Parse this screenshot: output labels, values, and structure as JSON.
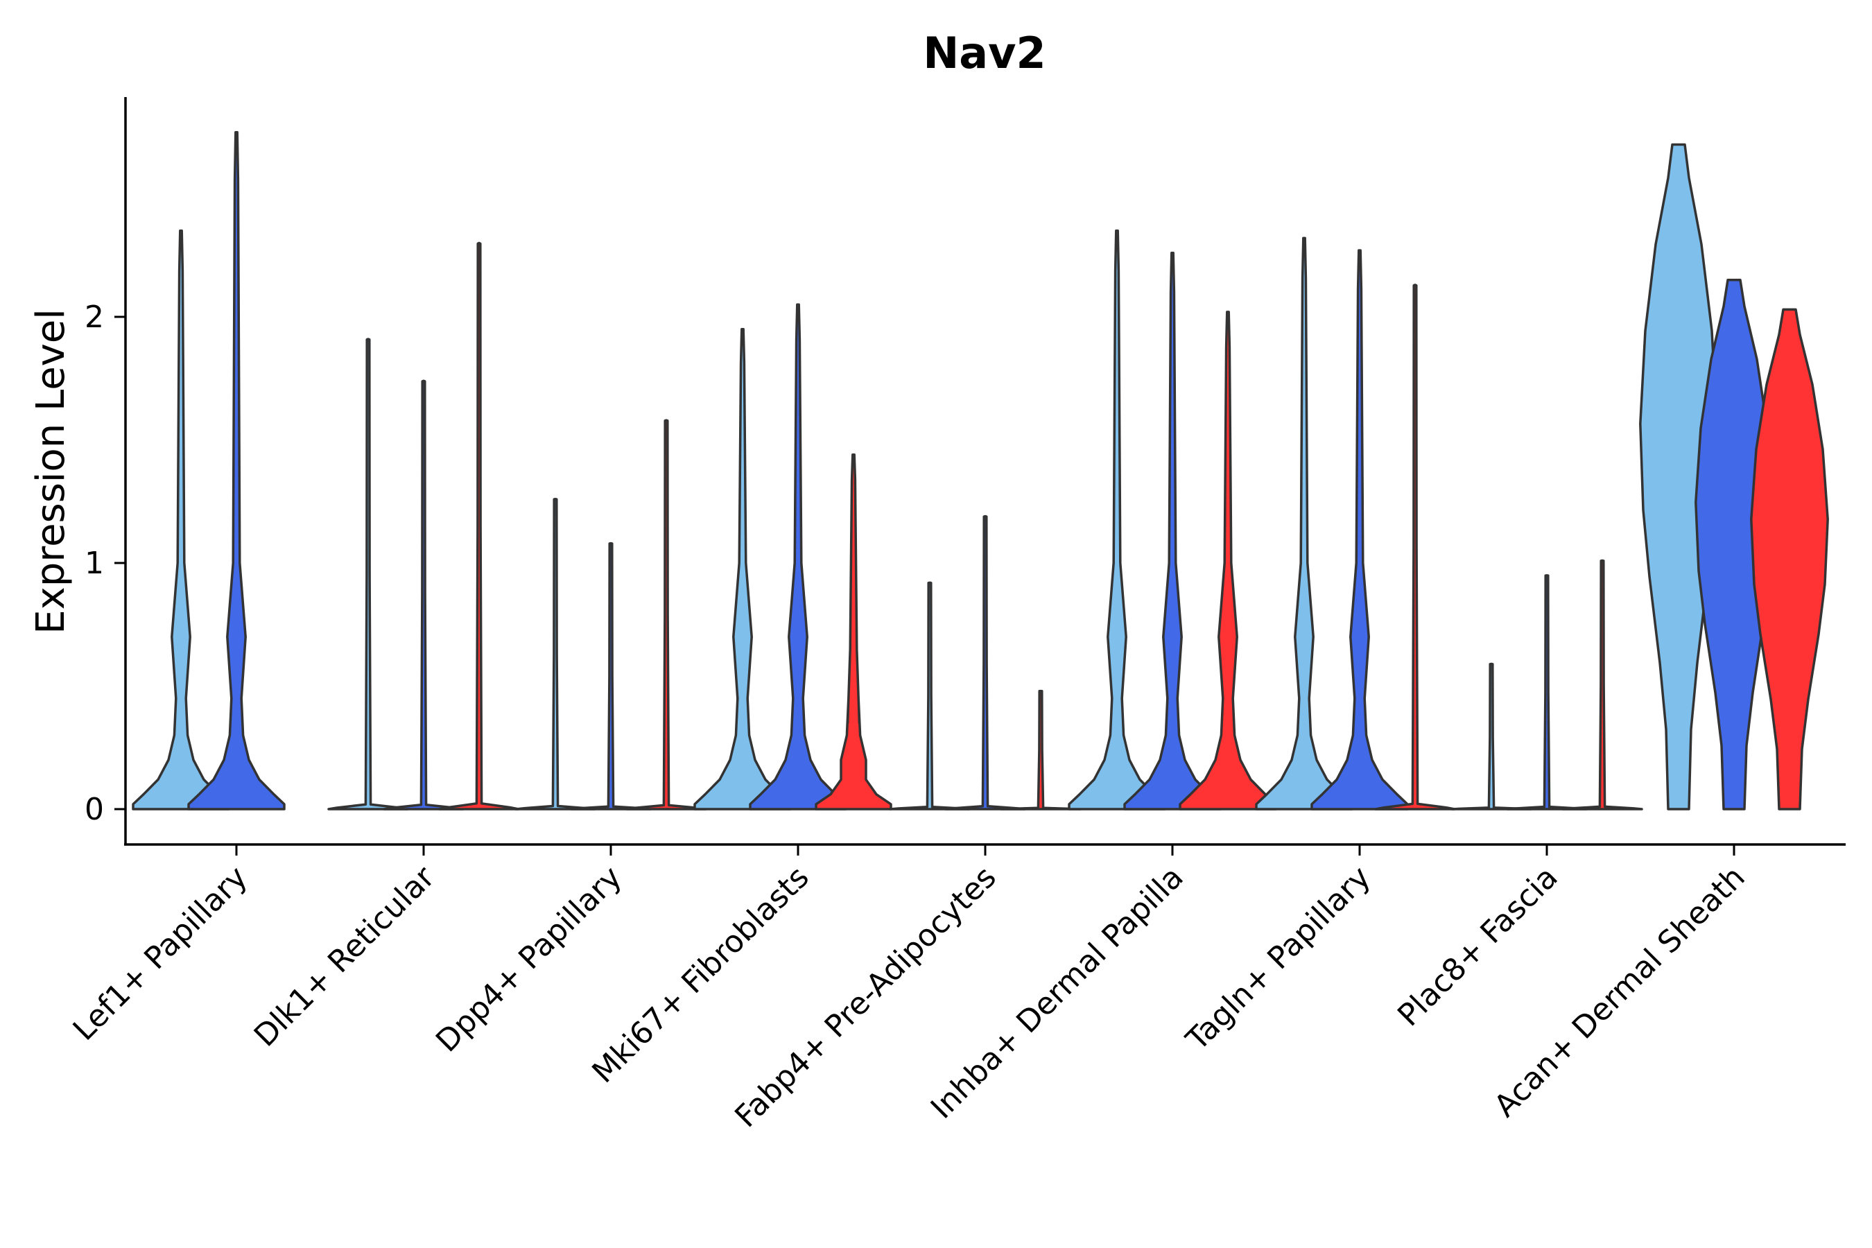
{
  "chart_data": {
    "type": "violin",
    "title": "Nav2",
    "xlabel": "",
    "ylabel": "Expression Level",
    "ylim": [
      -0.14,
      2.9
    ],
    "yticks": [
      0,
      1,
      2
    ],
    "grid": false,
    "legend": "none",
    "groups": [
      {
        "label": "Lef1+ Papillary",
        "violins": [
          {
            "color": "#7fbfec",
            "max": 2.35,
            "shape": "low-peak"
          },
          {
            "color": "#4169e8",
            "max": 2.75,
            "shape": "low-peak"
          }
        ]
      },
      {
        "label": "Dlk1+ Reticular",
        "violins": [
          {
            "color": "#7fbfec",
            "max": 1.91,
            "shape": "flat"
          },
          {
            "color": "#4169e8",
            "max": 1.74,
            "shape": "flat"
          },
          {
            "color": "#ff3333",
            "max": 2.3,
            "shape": "flat"
          }
        ]
      },
      {
        "label": "Dpp4+ Papillary",
        "violins": [
          {
            "color": "#7fbfec",
            "max": 1.26,
            "shape": "flat"
          },
          {
            "color": "#4169e8",
            "max": 1.08,
            "shape": "flat"
          },
          {
            "color": "#ff3333",
            "max": 1.58,
            "shape": "flat"
          }
        ]
      },
      {
        "label": "Mki67+ Fibroblasts",
        "violins": [
          {
            "color": "#7fbfec",
            "max": 1.95,
            "shape": "low-peak"
          },
          {
            "color": "#4169e8",
            "max": 2.05,
            "shape": "low-peak"
          },
          {
            "color": "#ff3333",
            "max": 1.44,
            "shape": "low-peak-small"
          }
        ]
      },
      {
        "label": "Fabp4+ Pre-Adipocytes",
        "violins": [
          {
            "color": "#7fbfec",
            "max": 0.92,
            "shape": "flat"
          },
          {
            "color": "#4169e8",
            "max": 1.19,
            "shape": "flat"
          },
          {
            "color": "#ff3333",
            "max": 0.48,
            "shape": "flat"
          }
        ]
      },
      {
        "label": "Inhba+ Dermal Papilla",
        "violins": [
          {
            "color": "#7fbfec",
            "max": 2.35,
            "shape": "low-peak"
          },
          {
            "color": "#4169e8",
            "max": 2.26,
            "shape": "low-peak"
          },
          {
            "color": "#ff3333",
            "max": 2.02,
            "shape": "low-peak"
          }
        ]
      },
      {
        "label": "Tagln+ Papillary",
        "violins": [
          {
            "color": "#7fbfec",
            "max": 2.32,
            "shape": "low-peak"
          },
          {
            "color": "#4169e8",
            "max": 2.27,
            "shape": "low-peak"
          },
          {
            "color": "#ff3333",
            "max": 2.13,
            "shape": "flat"
          }
        ]
      },
      {
        "label": "Plac8+ Fascia",
        "violins": [
          {
            "color": "#7fbfec",
            "max": 0.59,
            "shape": "flat"
          },
          {
            "color": "#4169e8",
            "max": 0.95,
            "shape": "flat"
          },
          {
            "color": "#ff3333",
            "max": 1.01,
            "shape": "flat"
          }
        ]
      },
      {
        "label": "Acan+ Dermal Sheath",
        "violins": [
          {
            "color": "#7fbfec",
            "min": 0,
            "max": 2.7,
            "shape": "broad"
          },
          {
            "color": "#4169e8",
            "min": 0,
            "max": 2.15,
            "shape": "broad"
          },
          {
            "color": "#ff3333",
            "min": 0,
            "max": 2.03,
            "shape": "broad"
          }
        ]
      }
    ]
  }
}
